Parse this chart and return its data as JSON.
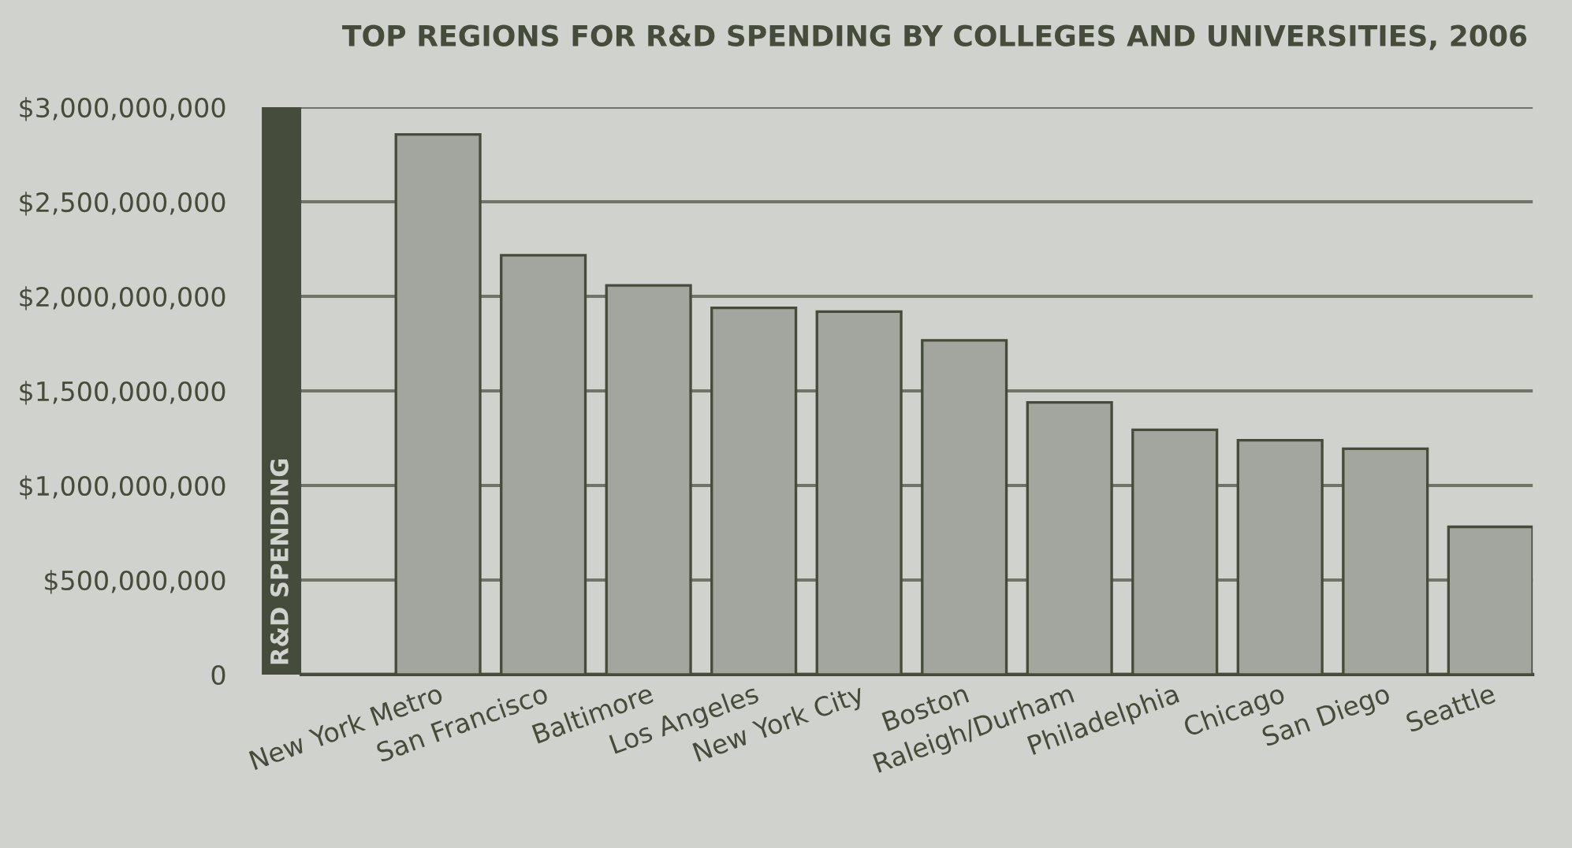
{
  "chart_data": {
    "type": "bar",
    "title": "TOP REGIONS FOR R&D SPENDING BY COLLEGES AND UNIVERSITIES, 2006",
    "ylabel": "R&D SPENDING",
    "categories": [
      "New York Metro",
      "San Francisco",
      "Baltimore",
      "Los Angeles",
      "New York City",
      "Boston",
      "Raleigh/Durham",
      "Philadelphia",
      "Chicago",
      "San Diego",
      "Seattle"
    ],
    "values": [
      2856000000,
      2217000000,
      2058000000,
      1939000000,
      1919000000,
      1767000000,
      1439000000,
      1294000000,
      1239000000,
      1194000000,
      781000000
    ],
    "color": "#a3a69e",
    "ylim": [
      0,
      3000000000
    ],
    "yticks": [
      {
        "value": 0,
        "label": "0"
      },
      {
        "value": 500000000,
        "label": "$500,000,000"
      },
      {
        "value": 1000000000,
        "label": "$1,000,000,000"
      },
      {
        "value": 1500000000,
        "label": "$1,500,000,000"
      },
      {
        "value": 2000000000,
        "label": "$2,000,000,000"
      },
      {
        "value": 2500000000,
        "label": "$2,500,000,000"
      },
      {
        "value": 3000000000,
        "label": "$3,000,000,000"
      }
    ],
    "grid": "y"
  }
}
